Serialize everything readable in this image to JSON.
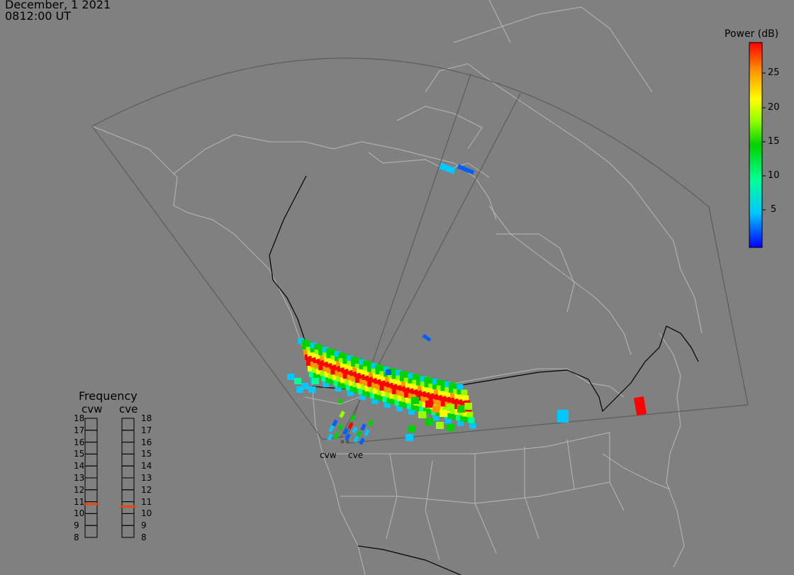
{
  "header": {
    "date": "December, 1 2021",
    "time": "0812:00 UT"
  },
  "colorbar": {
    "title": "Power (dB)",
    "ticks": [
      "25",
      "20",
      "15",
      "10",
      "5"
    ],
    "range": [
      0,
      29
    ],
    "colors": [
      "#0000ff",
      "#00c8ff",
      "#00ff96",
      "#00d200",
      "#96ff00",
      "#ffff00",
      "#ff9600",
      "#ff0000"
    ]
  },
  "frequency_panel": {
    "title": "Frequency",
    "radars": [
      {
        "name": "cvw",
        "frequency_mhz": 10.8
      },
      {
        "name": "cve",
        "frequency_mhz": 10.6
      }
    ],
    "scale": [
      "18",
      "17",
      "16",
      "15",
      "14",
      "13",
      "12",
      "11",
      "10",
      "9",
      "8"
    ],
    "indicator_color": "#e8480e"
  },
  "sites": [
    {
      "name": "cvw"
    },
    {
      "name": "cve"
    }
  ],
  "colors": {
    "background": "#808080",
    "coastline": "#b8b8b8",
    "border": "#000000",
    "fov": "#555555"
  }
}
